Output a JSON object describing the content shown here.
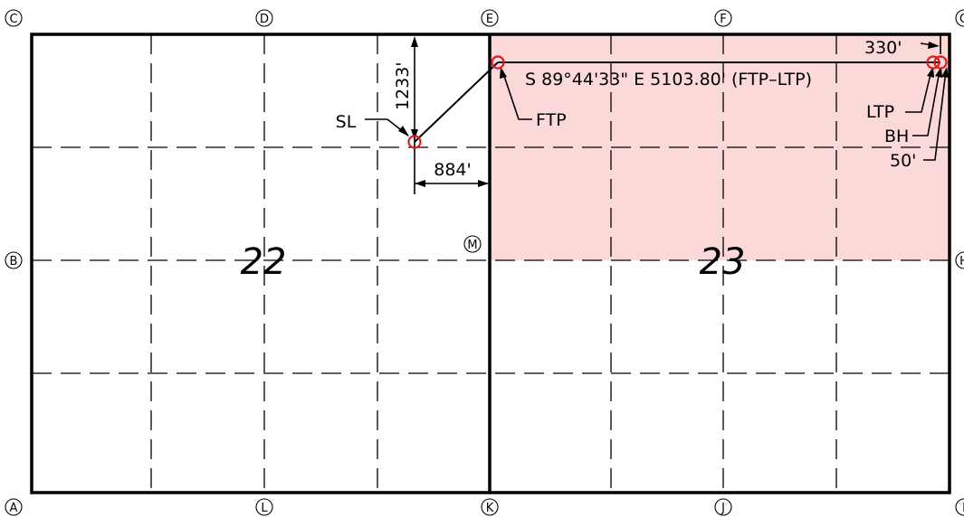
{
  "sections": {
    "left": "22",
    "right": "23"
  },
  "corners": {
    "A": "A",
    "B": "B",
    "C": "C",
    "D": "D",
    "E": "E",
    "F": "F",
    "G": "G",
    "H": "H",
    "I": "I",
    "J": "J",
    "K": "K",
    "L": "L",
    "M": "M"
  },
  "dimensions": {
    "from_north": "1233'",
    "from_east_line": "884'",
    "end_offset": "330'",
    "bh_offset": "50'"
  },
  "points": {
    "sl": "SL",
    "ftp": "FTP",
    "ltp": "LTP",
    "bh": "BH"
  },
  "lateral_bearing": "S 89°44'33\" E 5103.80' (FTP–LTP)",
  "colors": {
    "unit_fill": "#fbd9d9",
    "well_markers": "#e0191b",
    "lines": "#000000"
  }
}
